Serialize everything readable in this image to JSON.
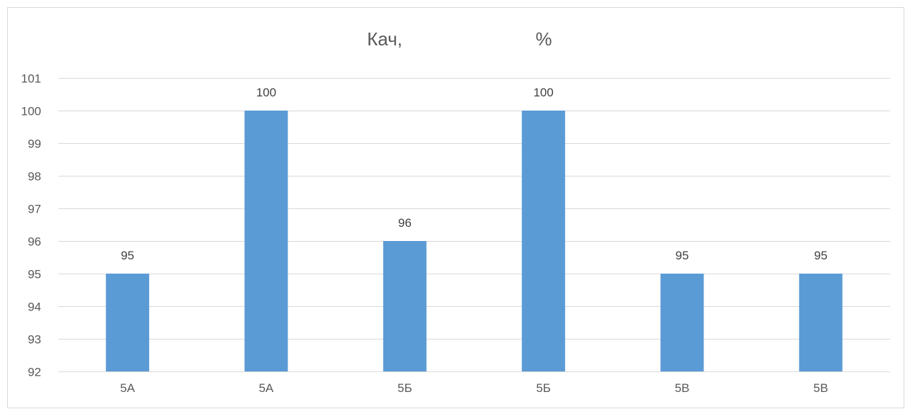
{
  "chart_data": {
    "type": "bar",
    "title": {
      "left": "Кач,",
      "right": "%"
    },
    "categories": [
      "5А",
      "5А",
      "5Б",
      "5Б",
      "5В",
      "5В"
    ],
    "series": [
      {
        "values": [
          95,
          100,
          96,
          100,
          95,
          95
        ]
      }
    ],
    "ylim": [
      92,
      101
    ],
    "yticks": [
      92,
      93,
      94,
      95,
      96,
      97,
      98,
      99,
      100,
      101
    ],
    "grid": true,
    "legend": "none",
    "data_labels": true,
    "colors": {
      "bar": "#5b9bd5",
      "grid": "#d9d9d9",
      "text": "#595959"
    }
  }
}
